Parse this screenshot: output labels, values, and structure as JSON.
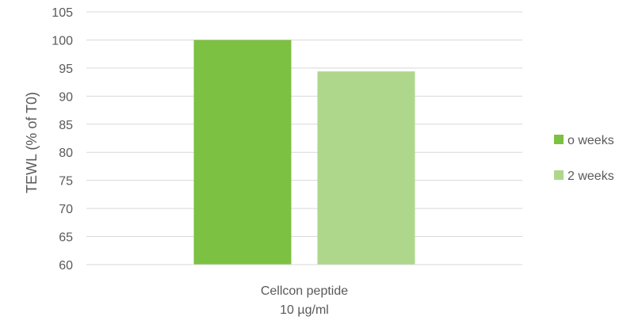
{
  "chart_data": {
    "type": "bar",
    "title": "",
    "xlabel": "",
    "ylabel": "TEWL (% of T0)",
    "categories": [
      [
        "Cellcon peptide",
        "10 µg/ml"
      ]
    ],
    "series": [
      {
        "name": "o weeks",
        "values": [
          100.0
        ],
        "color": "#7cc142"
      },
      {
        "name": "2 weeks",
        "values": [
          94.4
        ],
        "color": "#aed78b"
      }
    ],
    "ylim": [
      60,
      105
    ],
    "yticks": [
      60,
      65,
      70,
      75,
      80,
      85,
      90,
      95,
      100,
      105
    ],
    "grid": true,
    "legend_position": "right"
  }
}
